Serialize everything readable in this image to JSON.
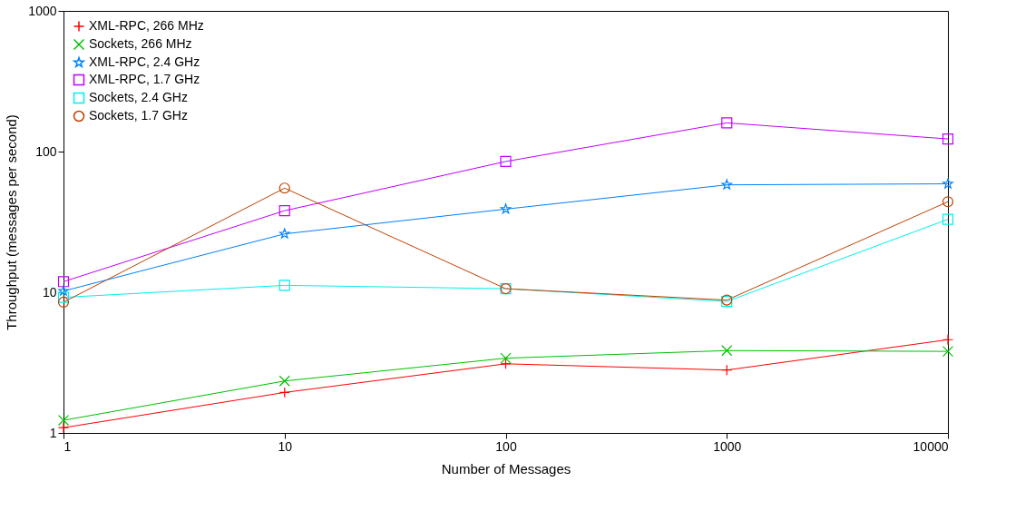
{
  "chart_data": {
    "type": "line",
    "xlabel": "Number of Messages",
    "ylabel": "Throughput (messages per second)",
    "x": [
      1,
      10,
      100,
      1000,
      10000
    ],
    "xlim": [
      1,
      10000
    ],
    "xticks": [
      1,
      10,
      100,
      1000,
      10000
    ],
    "ylim": [
      1,
      1000
    ],
    "yticks": [
      1,
      10,
      100,
      1000
    ],
    "log": "xy",
    "grid": false,
    "legend": "top left",
    "series": [
      {
        "name": "XML-RPC, 266 MHz",
        "color": "#ff0000",
        "marker": "cross",
        "values": [
          1.09,
          1.94,
          3.1,
          2.8,
          4.6
        ]
      },
      {
        "name": "Sockets, 266 MHz",
        "color": "#00c000",
        "marker": "x",
        "values": [
          1.23,
          2.34,
          3.4,
          3.85,
          3.8
        ]
      },
      {
        "name": "XML-RPC, 2.4 GHz",
        "color": "#0080ff",
        "marker": "star",
        "values": [
          10.2,
          26,
          39,
          58,
          59
        ]
      },
      {
        "name": "XML-RPC, 1.7 GHz",
        "color": "#c000ff",
        "marker": "square",
        "values": [
          11.9,
          38,
          85,
          160,
          123
        ]
      },
      {
        "name": "Sockets, 2.4 GHz",
        "color": "#00eeee",
        "marker": "square",
        "values": [
          9.2,
          11.2,
          10.6,
          8.6,
          33
        ]
      },
      {
        "name": "Sockets, 1.7 GHz",
        "color": "#c04000",
        "marker": "circle",
        "values": [
          8.5,
          55,
          10.6,
          8.8,
          44
        ]
      }
    ]
  }
}
